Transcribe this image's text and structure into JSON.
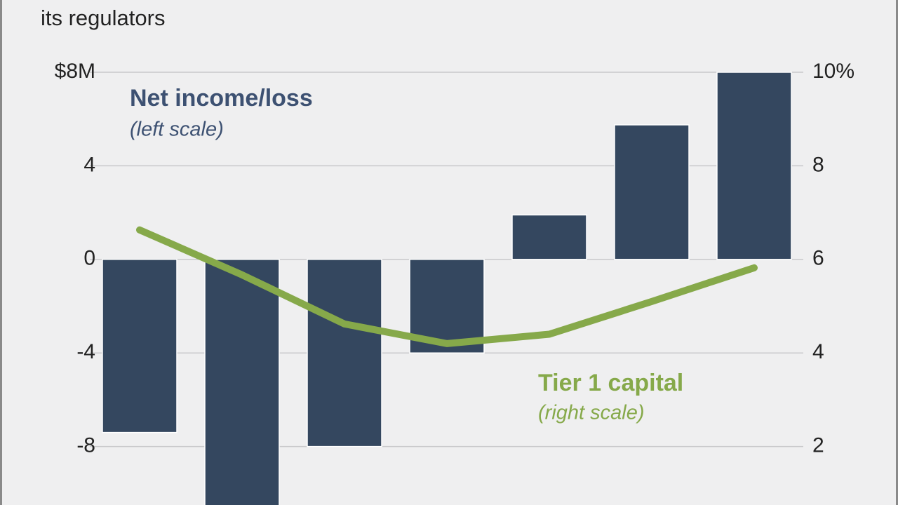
{
  "chart_data": {
    "type": "bar",
    "subtitle": "its regulators",
    "categories": [
      null,
      null,
      null,
      null,
      null,
      null,
      null
    ],
    "series": [
      {
        "name": "Net income/loss",
        "scale_note": "(left scale)",
        "type": "bar",
        "color": "#34475f",
        "values": [
          -7.4,
          -11,
          -8.0,
          -4.0,
          1.9,
          5.75,
          8.0
        ]
      },
      {
        "name": "Tier 1 capital",
        "scale_note": "(right scale)",
        "type": "line",
        "axis": "y2",
        "color": "#86a94a",
        "values": [
          6.63,
          5.67,
          4.62,
          4.2,
          4.4,
          5.1,
          5.82
        ]
      }
    ],
    "ylim": [
      -10.5,
      8
    ],
    "yticks": [
      {
        "value": 8,
        "label": "$8M"
      },
      4,
      0,
      -4,
      -8
    ],
    "y2lim": [
      0.75,
      10
    ],
    "y2ticks": [
      {
        "value": 10,
        "label": "10%"
      },
      8,
      6,
      4,
      2
    ],
    "grid": true
  }
}
